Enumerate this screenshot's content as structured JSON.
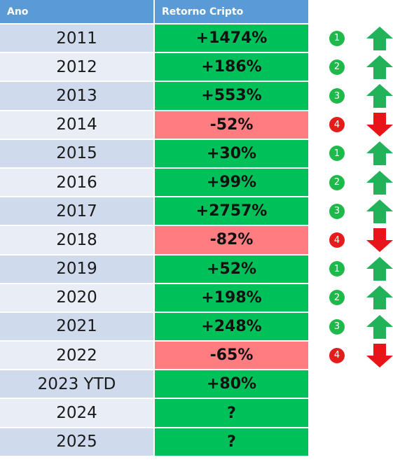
{
  "colors": {
    "header": "#5b9bd5",
    "positive": "#00c05a",
    "negative": "#ff7c80",
    "badge_green": "#1fb84a",
    "badge_red": "#e51c1c",
    "arrow_up": "#22b35a",
    "arrow_down": "#e8141a"
  },
  "header": {
    "year_label": "Ano",
    "return_label": "Retorno Cripto"
  },
  "chart_data": {
    "type": "table",
    "columns": [
      "Ano",
      "Retorno Cripto"
    ],
    "rows": [
      {
        "year": "2011",
        "return": "+1474%",
        "value": 1474,
        "sign": "positive",
        "badge": "1",
        "direction": "up"
      },
      {
        "year": "2012",
        "return": "+186%",
        "value": 186,
        "sign": "positive",
        "badge": "2",
        "direction": "up"
      },
      {
        "year": "2013",
        "return": "+553%",
        "value": 553,
        "sign": "positive",
        "badge": "3",
        "direction": "up"
      },
      {
        "year": "2014",
        "return": "-52%",
        "value": -52,
        "sign": "negative",
        "badge": "4",
        "direction": "down"
      },
      {
        "year": "2015",
        "return": "+30%",
        "value": 30,
        "sign": "positive",
        "badge": "1",
        "direction": "up"
      },
      {
        "year": "2016",
        "return": "+99%",
        "value": 99,
        "sign": "positive",
        "badge": "2",
        "direction": "up"
      },
      {
        "year": "2017",
        "return": "+2757%",
        "value": 2757,
        "sign": "positive",
        "badge": "3",
        "direction": "up"
      },
      {
        "year": "2018",
        "return": "-82%",
        "value": -82,
        "sign": "negative",
        "badge": "4",
        "direction": "down"
      },
      {
        "year": "2019",
        "return": "+52%",
        "value": 52,
        "sign": "positive",
        "badge": "1",
        "direction": "up"
      },
      {
        "year": "2020",
        "return": "+198%",
        "value": 198,
        "sign": "positive",
        "badge": "2",
        "direction": "up"
      },
      {
        "year": "2021",
        "return": "+248%",
        "value": 248,
        "sign": "positive",
        "badge": "3",
        "direction": "up"
      },
      {
        "year": "2022",
        "return": "-65%",
        "value": -65,
        "sign": "negative",
        "badge": "4",
        "direction": "down"
      },
      {
        "year": "2023 YTD",
        "return": "+80%",
        "value": 80,
        "sign": "positive",
        "badge": "",
        "direction": ""
      },
      {
        "year": "2024",
        "return": "?",
        "value": null,
        "sign": "positive",
        "badge": "",
        "direction": ""
      },
      {
        "year": "2025",
        "return": "?",
        "value": null,
        "sign": "positive",
        "badge": "",
        "direction": ""
      }
    ]
  }
}
